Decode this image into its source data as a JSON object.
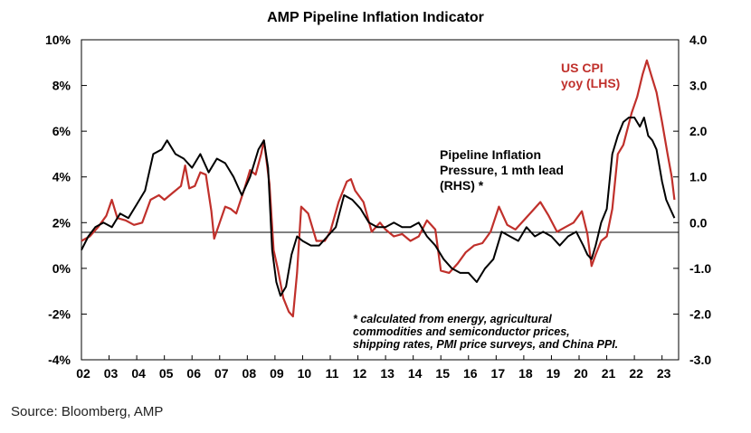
{
  "chart_data": {
    "type": "line",
    "title": "AMP Pipeline Inflation Indicator",
    "source": "Source: Bloomberg, AMP",
    "left_axis": {
      "ticks": [
        -4,
        -2,
        0,
        2,
        4,
        6,
        8,
        10
      ],
      "tick_labels": [
        "-4%",
        "-2%",
        "0%",
        "2%",
        "4%",
        "6%",
        "8%",
        "10%"
      ],
      "range": [
        -4,
        10
      ]
    },
    "right_axis": {
      "ticks": [
        -3.0,
        -2.0,
        -1.0,
        0.0,
        1.0,
        2.0,
        3.0,
        4.0
      ],
      "tick_labels": [
        "-3.0",
        "-2.0",
        "-1.0",
        "0.0",
        "1.0",
        "2.0",
        "3.0",
        "4.0"
      ],
      "range": [
        -3.0,
        4.0
      ]
    },
    "x_axis": {
      "range": [
        2002.0,
        2023.6
      ],
      "ticks": [
        2002,
        2003,
        2004,
        2005,
        2006,
        2007,
        2008,
        2009,
        2010,
        2011,
        2012,
        2013,
        2014,
        2015,
        2016,
        2017,
        2018,
        2019,
        2020,
        2021,
        2022,
        2023
      ],
      "tick_labels": [
        "02",
        "03",
        "04",
        "05",
        "06",
        "07",
        "08",
        "09",
        "10",
        "11",
        "12",
        "13",
        "14",
        "15",
        "16",
        "17",
        "18",
        "19",
        "20",
        "21",
        "22",
        "23"
      ]
    },
    "zero_line_right_axis": 0.0,
    "series": [
      {
        "name": "US CPI yoy (LHS)",
        "label_lines": [
          "US CPI",
          "yoy (LHS)"
        ],
        "axis": "left",
        "color": "#c0302b",
        "x": [
          2002.0,
          2002.3,
          2002.6,
          2002.9,
          2003.1,
          2003.3,
          2003.6,
          2003.9,
          2004.2,
          2004.5,
          2004.8,
          2005.0,
          2005.3,
          2005.6,
          2005.75,
          2005.9,
          2006.1,
          2006.3,
          2006.5,
          2006.7,
          2006.8,
          2007.0,
          2007.2,
          2007.4,
          2007.6,
          2007.9,
          2008.1,
          2008.3,
          2008.5,
          2008.6,
          2008.8,
          2008.95,
          2009.1,
          2009.3,
          2009.5,
          2009.65,
          2009.8,
          2009.95,
          2010.2,
          2010.5,
          2010.8,
          2011.0,
          2011.3,
          2011.6,
          2011.75,
          2011.9,
          2012.2,
          2012.5,
          2012.8,
          2013.0,
          2013.3,
          2013.6,
          2013.9,
          2014.2,
          2014.5,
          2014.8,
          2015.0,
          2015.3,
          2015.6,
          2015.9,
          2016.2,
          2016.5,
          2016.8,
          2017.1,
          2017.4,
          2017.7,
          2018.0,
          2018.3,
          2018.6,
          2018.9,
          2019.2,
          2019.5,
          2019.8,
          2020.1,
          2020.3,
          2020.45,
          2020.6,
          2020.8,
          2021.0,
          2021.2,
          2021.4,
          2021.6,
          2021.9,
          2022.1,
          2022.3,
          2022.45,
          2022.6,
          2022.8,
          2023.0,
          2023.2,
          2023.35,
          2023.45
        ],
        "values": [
          1.2,
          1.4,
          1.8,
          2.3,
          3.0,
          2.2,
          2.1,
          1.9,
          2.0,
          3.0,
          3.2,
          3.0,
          3.3,
          3.6,
          4.5,
          3.5,
          3.6,
          4.2,
          4.1,
          2.5,
          1.3,
          2.0,
          2.7,
          2.6,
          2.4,
          3.5,
          4.3,
          4.1,
          5.0,
          5.6,
          3.7,
          0.8,
          0.0,
          -1.3,
          -1.9,
          -2.1,
          -0.2,
          2.7,
          2.4,
          1.2,
          1.2,
          1.6,
          2.9,
          3.8,
          3.9,
          3.4,
          2.9,
          1.6,
          2.0,
          1.7,
          1.4,
          1.5,
          1.2,
          1.4,
          2.1,
          1.7,
          -0.1,
          -0.2,
          0.2,
          0.7,
          1.0,
          1.1,
          1.6,
          2.7,
          1.9,
          1.7,
          2.1,
          2.5,
          2.9,
          2.3,
          1.6,
          1.8,
          2.0,
          2.5,
          1.5,
          0.1,
          0.6,
          1.2,
          1.4,
          2.6,
          5.0,
          5.4,
          6.8,
          7.5,
          8.5,
          9.1,
          8.5,
          7.7,
          6.4,
          5.0,
          4.0,
          3.0
        ]
      },
      {
        "name": "Pipeline Inflation Pressure, 1 mth lead (RHS) *",
        "label_lines": [
          "Pipeline Inflation",
          "Pressure, 1 mth lead",
          "(RHS) *"
        ],
        "axis": "right",
        "color": "#000000",
        "x": [
          2002.0,
          2002.25,
          2002.5,
          2002.8,
          2003.1,
          2003.4,
          2003.7,
          2004.0,
          2004.3,
          2004.6,
          2004.9,
          2005.1,
          2005.4,
          2005.7,
          2006.0,
          2006.3,
          2006.6,
          2006.9,
          2007.2,
          2007.5,
          2007.8,
          2008.1,
          2008.4,
          2008.6,
          2008.75,
          2008.9,
          2009.05,
          2009.2,
          2009.4,
          2009.6,
          2009.8,
          2010.0,
          2010.3,
          2010.6,
          2010.9,
          2011.2,
          2011.5,
          2011.8,
          2012.1,
          2012.4,
          2012.7,
          2013.0,
          2013.3,
          2013.6,
          2013.9,
          2014.2,
          2014.5,
          2014.8,
          2015.1,
          2015.4,
          2015.7,
          2016.0,
          2016.3,
          2016.6,
          2016.9,
          2017.2,
          2017.5,
          2017.8,
          2018.1,
          2018.4,
          2018.7,
          2019.0,
          2019.3,
          2019.6,
          2019.9,
          2020.15,
          2020.3,
          2020.45,
          2020.6,
          2020.8,
          2021.0,
          2021.2,
          2021.4,
          2021.6,
          2021.8,
          2022.0,
          2022.2,
          2022.35,
          2022.5,
          2022.65,
          2022.8,
          2023.0,
          2023.15,
          2023.3,
          2023.45
        ],
        "values": [
          -0.6,
          -0.3,
          -0.1,
          0.0,
          -0.1,
          0.2,
          0.1,
          0.4,
          0.7,
          1.5,
          1.6,
          1.8,
          1.5,
          1.4,
          1.2,
          1.5,
          1.1,
          1.4,
          1.3,
          1.0,
          0.6,
          1.0,
          1.6,
          1.8,
          1.2,
          -0.6,
          -1.3,
          -1.6,
          -1.4,
          -0.7,
          -0.3,
          -0.4,
          -0.5,
          -0.5,
          -0.3,
          -0.1,
          0.6,
          0.5,
          0.3,
          0.0,
          -0.1,
          -0.1,
          0.0,
          -0.1,
          -0.1,
          0.0,
          -0.3,
          -0.5,
          -0.8,
          -1.0,
          -1.1,
          -1.1,
          -1.3,
          -1.0,
          -0.8,
          -0.2,
          -0.3,
          -0.4,
          -0.1,
          -0.3,
          -0.2,
          -0.3,
          -0.5,
          -0.3,
          -0.2,
          -0.5,
          -0.7,
          -0.8,
          -0.5,
          0.0,
          0.3,
          1.5,
          1.9,
          2.2,
          2.3,
          2.3,
          2.1,
          2.3,
          1.9,
          1.8,
          1.6,
          0.9,
          0.5,
          0.3,
          0.1
        ]
      }
    ],
    "annotation": {
      "lines": [
        "* calculated from energy, agricultural",
        "commodities and semiconductor prices,",
        "shipping rates, PMI price surveys, and China PPI."
      ]
    }
  }
}
